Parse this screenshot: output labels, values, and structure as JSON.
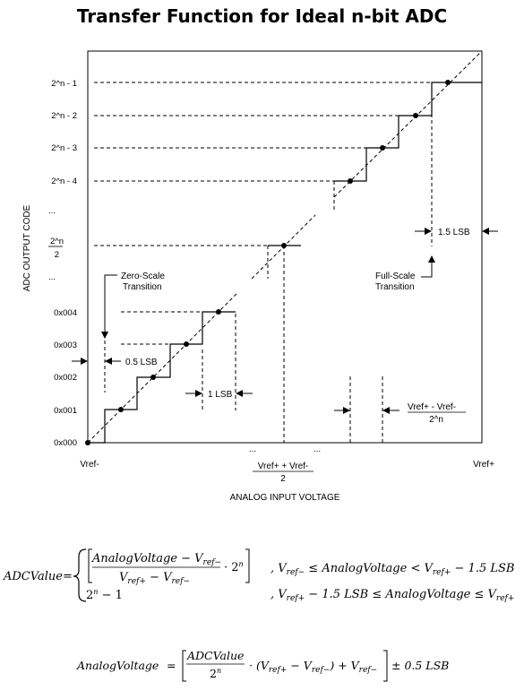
{
  "title": "Transfer Function for Ideal n-bit ADC",
  "diagram": {
    "y_axis_label": "ADC OUTPUT CODE",
    "x_axis_label": "ANALOG INPUT VOLTAGE",
    "y_ticks": [
      "2^n - 1",
      "2^n - 2",
      "2^n - 3",
      "2^n - 4",
      "...",
      "2^n",
      "2",
      "...",
      "0x004",
      "0x003",
      "0x002",
      "0x001",
      "0x000"
    ],
    "x_labels": {
      "left": "Vref-",
      "right": "Vref+",
      "mid_numerator": "Vref+  +  Vref-",
      "mid_denominator": "2",
      "dots1": "...",
      "dots2": "..."
    },
    "annotations": {
      "zero_scale": [
        "Zero-Scale",
        "Transition"
      ],
      "full_scale": [
        "Full-Scale",
        "Transition"
      ],
      "half_lsb": "0.5 LSB",
      "one_lsb": "1 LSB",
      "one_half_lsb": "1.5 LSB",
      "step_numerator": "Vref+  -  Vref-",
      "step_denominator": "2^n"
    }
  },
  "equations": {
    "adc_lhs": "ADCValue",
    "eq": "=",
    "case1_num": "AnalogVoltage − V",
    "case1_num_sub": "ref−",
    "case1_den1": "V",
    "case1_den_sub1": "ref+",
    "case1_den_mid": " − V",
    "case1_den_sub2": "ref−",
    "case1_mult": "· 2",
    "case1_exp": "n",
    "case1_cond_a": ",   V",
    "case1_cond_a_sub": "ref−",
    "case1_cond_b": " ≤ AnalogVoltage < V",
    "case1_cond_b_sub": "ref+",
    "case1_cond_c": " − 1.5 LSB",
    "case2_val": "2",
    "case2_exp": "n",
    "case2_tail": " − 1",
    "case2_cond_a": ",   V",
    "case2_cond_a_sub": "ref+",
    "case2_cond_b": " − 1.5 LSB  ≤ AnalogVoltage ≤ V",
    "case2_cond_b_sub": "ref+",
    "av_lhs": "AnalogVoltage",
    "av_num": "ADCValue",
    "av_den": "2",
    "av_den_exp": "n",
    "av_mid": "· (V",
    "av_sub1": "ref+",
    "av_mid2": " − V",
    "av_sub2": "ref−",
    "av_mid3": ") + V",
    "av_sub3": "ref−",
    "av_tail": "± 0.5 LSB"
  }
}
